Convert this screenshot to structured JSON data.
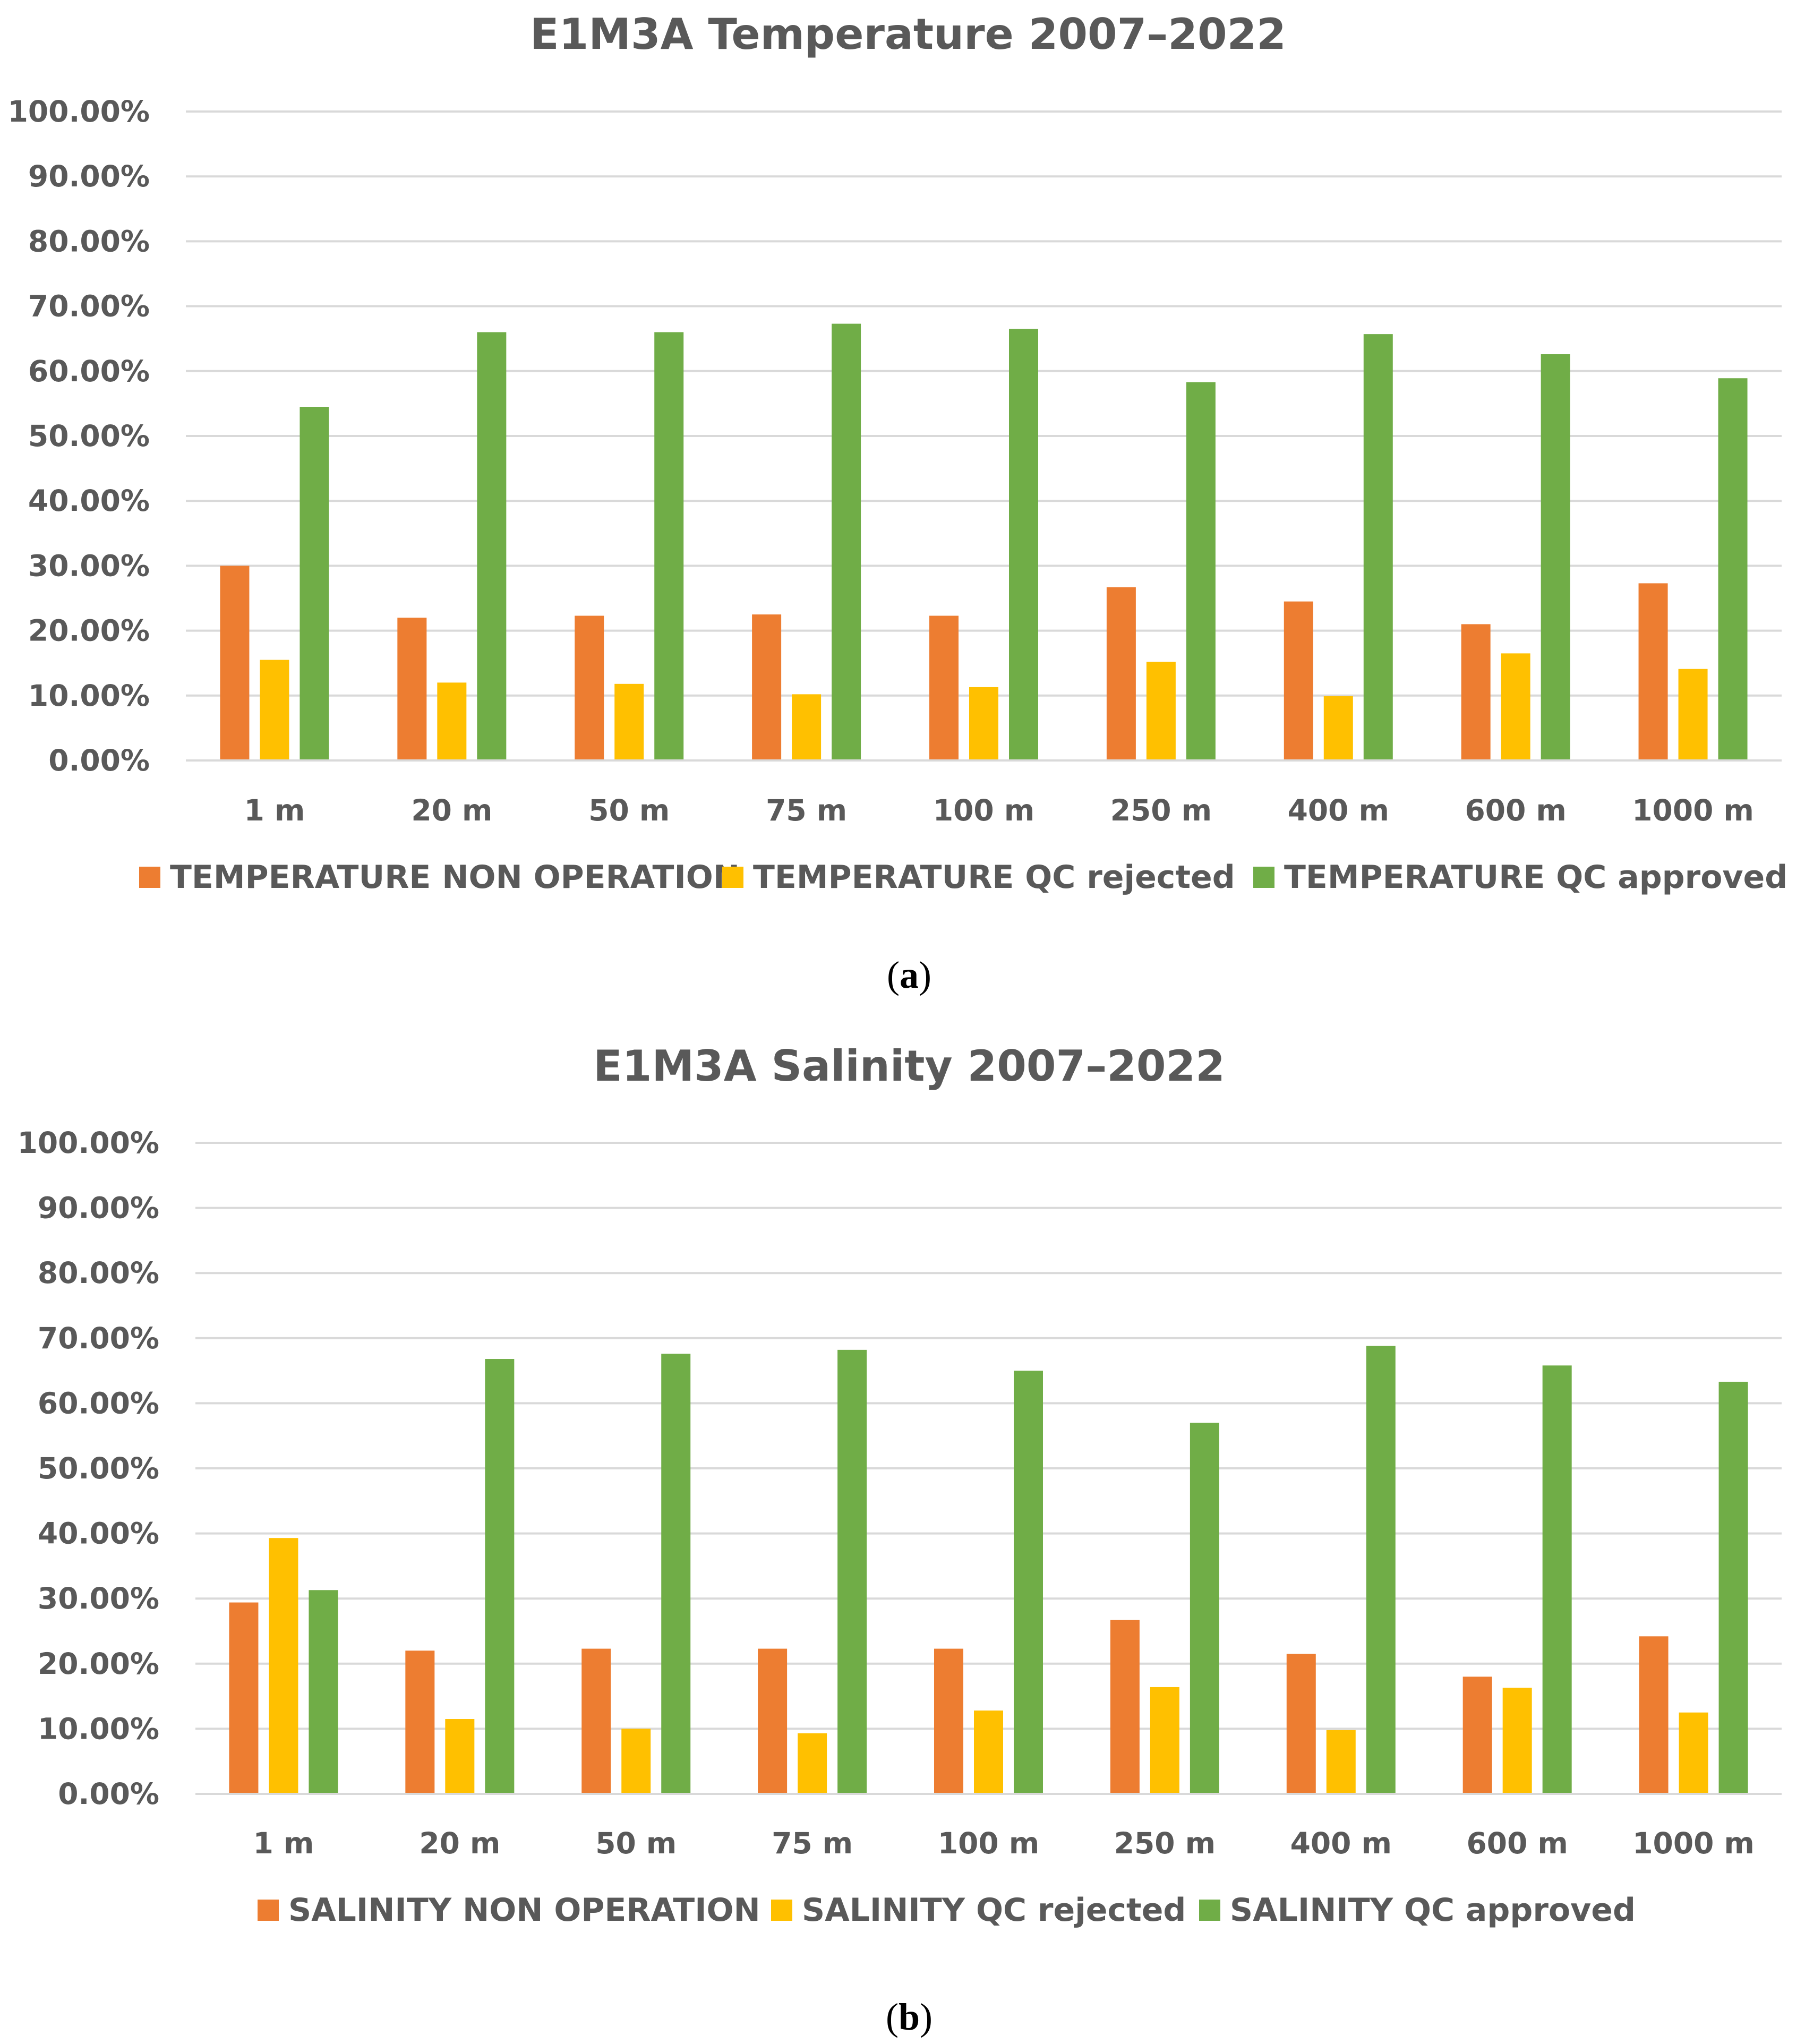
{
  "colors": {
    "non_operation": "#ED7D31",
    "qc_rejected": "#FFC000",
    "qc_approved": "#70AD47",
    "gridline": "#D9D9D9",
    "axis_text": "#595959"
  },
  "captions": [
    {
      "open": "(",
      "letter": "a",
      "close": ")"
    },
    {
      "open": "(",
      "letter": "b",
      "close": ")"
    }
  ],
  "chart_data": [
    {
      "type": "bar",
      "title": "E1M3A Temperature 2007–2022",
      "xlabel": "",
      "ylabel": "",
      "ylim": [
        0,
        100
      ],
      "yticks": [
        "0.00%",
        "10.00%",
        "20.00%",
        "30.00%",
        "40.00%",
        "50.00%",
        "60.00%",
        "70.00%",
        "80.00%",
        "90.00%",
        "100.00%"
      ],
      "categories": [
        "1 m",
        "20 m",
        "50 m",
        "75 m",
        "100 m",
        "250 m",
        "400 m",
        "600 m",
        "1000 m"
      ],
      "legend_position": "bottom",
      "series": [
        {
          "name": "TEMPERATURE NON OPERATION",
          "color_key": "non_operation",
          "values": [
            30.0,
            22.0,
            22.3,
            22.5,
            22.3,
            26.7,
            24.5,
            21.0,
            27.3
          ]
        },
        {
          "name": "TEMPERATURE QC rejected",
          "color_key": "qc_rejected",
          "values": [
            15.5,
            12.0,
            11.8,
            10.2,
            11.3,
            15.2,
            9.9,
            16.5,
            14.1
          ]
        },
        {
          "name": "TEMPERATURE QC approved",
          "color_key": "qc_approved",
          "values": [
            54.5,
            66.0,
            66.0,
            67.3,
            66.5,
            58.3,
            65.7,
            62.6,
            58.9
          ]
        }
      ]
    },
    {
      "type": "bar",
      "title": "E1M3A Salinity 2007–2022",
      "xlabel": "",
      "ylabel": "",
      "ylim": [
        0,
        100
      ],
      "yticks": [
        "0.00%",
        "10.00%",
        "20.00%",
        "30.00%",
        "40.00%",
        "50.00%",
        "60.00%",
        "70.00%",
        "80.00%",
        "90.00%",
        "100.00%"
      ],
      "categories": [
        "1 m",
        "20 m",
        "50 m",
        "75 m",
        "100 m",
        "250 m",
        "400 m",
        "600 m",
        "1000 m"
      ],
      "legend_position": "bottom",
      "series": [
        {
          "name": "SALINITY NON OPERATION",
          "color_key": "non_operation",
          "values": [
            29.4,
            22.0,
            22.3,
            22.3,
            22.3,
            26.7,
            21.5,
            18.0,
            24.2
          ]
        },
        {
          "name": "SALINITY QC rejected",
          "color_key": "qc_rejected",
          "values": [
            39.3,
            11.5,
            10.0,
            9.3,
            12.8,
            16.4,
            9.8,
            16.3,
            12.5
          ]
        },
        {
          "name": "SALINITY QC approved",
          "color_key": "qc_approved",
          "values": [
            31.3,
            66.8,
            67.6,
            68.2,
            65.0,
            57.0,
            68.8,
            65.8,
            63.3
          ]
        }
      ]
    }
  ]
}
